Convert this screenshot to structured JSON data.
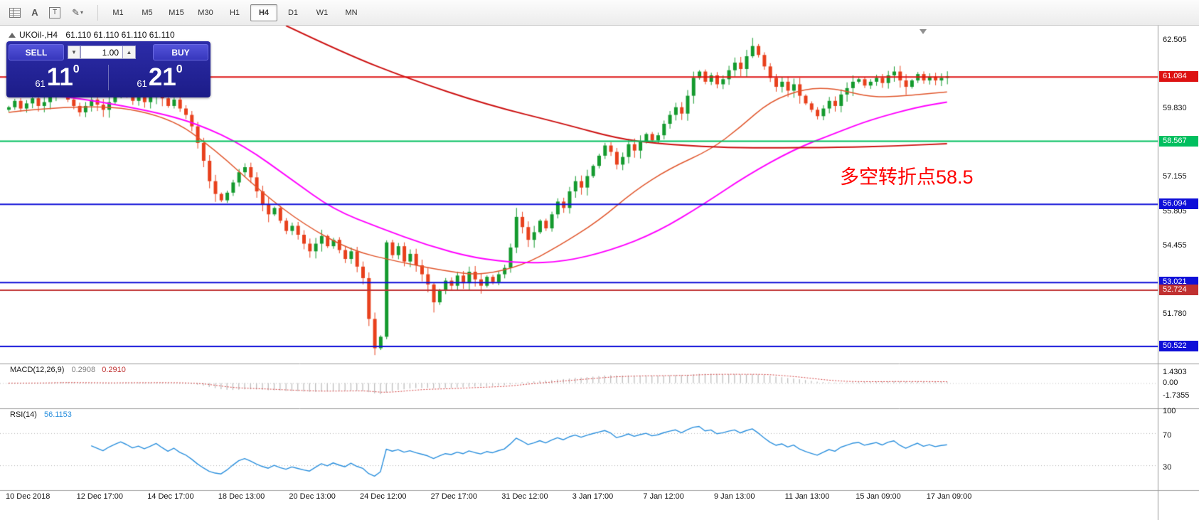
{
  "toolbar": {
    "icons": {
      "text_tool": "A",
      "textbox_tool": "T",
      "draw_tool": "✎",
      "dropdown_glyph": "▾"
    },
    "timeframes": [
      "M1",
      "M5",
      "M15",
      "M30",
      "H1",
      "H4",
      "D1",
      "W1",
      "MN"
    ],
    "active_timeframe": "H4"
  },
  "symbol_info": {
    "symbol": "UKOil-,H4",
    "ohlc": "61.110 61.110 61.110 61.110"
  },
  "trade_panel": {
    "sell_label": "SELL",
    "buy_label": "BUY",
    "volume": "1.00",
    "spin_down_glyph": "▼",
    "spin_up_glyph": "▲",
    "bid": {
      "prefix": "61",
      "big": "11",
      "sup": "0"
    },
    "ask": {
      "prefix": "61",
      "big": "21",
      "sup": "0"
    }
  },
  "annotation": {
    "text": "多空转折点58.5",
    "color": "#ff0000"
  },
  "macd_panel": {
    "name": "MACD(12,26,9)",
    "value_main": "0.2908",
    "value_signal": "0.2910",
    "axis": [
      {
        "v": 1.4303,
        "text": "1.4303"
      },
      {
        "v": 0,
        "text": "0.00"
      },
      {
        "v": -1.7355,
        "text": "-1.7355"
      }
    ],
    "histogram_color": "#bdbdbd",
    "signal_color": "#d23f3f"
  },
  "rsi_panel": {
    "name": "RSI(14)",
    "value": "56.1153",
    "axis": [
      {
        "v": 100,
        "text": "100"
      },
      {
        "v": 70,
        "text": "70"
      },
      {
        "v": 30,
        "text": "30"
      }
    ],
    "line_color": "#2a8fdd"
  },
  "chart_data": {
    "type": "candlestick",
    "symbol": "UKOil-",
    "timeframe": "H4",
    "up_color": "#149a2e",
    "down_color": "#e8401c",
    "visible_price_range": [
      50.0,
      63.2
    ],
    "closes": [
      59.9,
      60.15,
      59.85,
      60.05,
      60.25,
      59.95,
      60.1,
      60.45,
      60.7,
      60.5,
      60.2,
      59.95,
      59.7,
      59.95,
      60.2,
      60.0,
      59.8,
      60.1,
      60.35,
      60.6,
      60.4,
      60.15,
      60.3,
      60.1,
      60.3,
      60.55,
      60.25,
      59.95,
      60.2,
      59.85,
      59.6,
      59.15,
      58.5,
      57.8,
      57.0,
      56.5,
      56.25,
      56.55,
      56.95,
      57.35,
      57.55,
      57.15,
      56.6,
      56.1,
      55.7,
      55.95,
      55.45,
      55.05,
      55.25,
      54.9,
      54.55,
      54.25,
      54.55,
      54.85,
      54.45,
      54.7,
      54.3,
      53.95,
      54.25,
      53.65,
      53.2,
      51.6,
      50.45,
      50.9,
      54.6,
      54.1,
      54.45,
      53.85,
      54.15,
      53.7,
      53.35,
      52.95,
      52.25,
      52.7,
      53.1,
      52.9,
      53.3,
      53.0,
      53.45,
      53.15,
      52.9,
      53.25,
      53.05,
      53.35,
      53.6,
      54.4,
      55.6,
      55.2,
      54.7,
      55.0,
      55.45,
      55.15,
      55.7,
      56.2,
      55.95,
      56.6,
      57.0,
      56.75,
      57.2,
      57.6,
      58.0,
      58.4,
      58.15,
      57.65,
      57.95,
      58.45,
      58.2,
      58.55,
      58.85,
      58.6,
      58.8,
      59.25,
      59.6,
      59.9,
      59.65,
      60.35,
      61.05,
      61.3,
      60.9,
      61.15,
      60.8,
      61.0,
      61.35,
      61.65,
      61.4,
      61.9,
      62.3,
      61.95,
      61.5,
      61.05,
      60.7,
      60.9,
      60.55,
      60.8,
      60.35,
      60.05,
      59.8,
      59.55,
      59.85,
      60.15,
      59.95,
      60.4,
      60.65,
      60.9,
      61.0,
      60.75,
      60.9,
      61.05,
      60.85,
      61.15,
      61.3,
      60.95,
      60.7,
      60.95,
      61.2,
      60.95,
      61.1,
      60.95,
      61.05,
      61.11
    ],
    "spike_highs": {
      "86": 55.95,
      "126": 62.62
    },
    "spike_lows": {
      "62": 50.18,
      "72": 51.85
    },
    "x_labels": [
      {
        "bar": 0,
        "text": "10 Dec 2018"
      },
      {
        "bar": 12,
        "text": "12 Dec 17:00"
      },
      {
        "bar": 24,
        "text": "14 Dec 17:00"
      },
      {
        "bar": 36,
        "text": "18 Dec 13:00"
      },
      {
        "bar": 48,
        "text": "20 Dec 13:00"
      },
      {
        "bar": 60,
        "text": "24 Dec 12:00"
      },
      {
        "bar": 72,
        "text": "27 Dec 17:00"
      },
      {
        "bar": 84,
        "text": "31 Dec 12:00"
      },
      {
        "bar": 96,
        "text": "3 Jan 17:00"
      },
      {
        "bar": 108,
        "text": "7 Jan 12:00"
      },
      {
        "bar": 120,
        "text": "9 Jan 13:00"
      },
      {
        "bar": 132,
        "text": "11 Jan 13:00"
      },
      {
        "bar": 144,
        "text": "15 Jan 09:00"
      },
      {
        "bar": 156,
        "text": "17 Jan 09:00"
      }
    ],
    "y_labels": [
      {
        "price": 62.505,
        "text": "62.505"
      },
      {
        "price": 59.83,
        "text": "59.830"
      },
      {
        "price": 57.155,
        "text": "57.155"
      },
      {
        "price": 55.805,
        "text": "55.805"
      },
      {
        "price": 54.455,
        "text": "54.455"
      },
      {
        "price": 51.78,
        "text": "51.780"
      }
    ],
    "hlines": [
      {
        "price": 61.084,
        "text": "61.084",
        "color": "#dd1111"
      },
      {
        "price": 58.567,
        "text": "58.567",
        "color": "#00bf5f"
      },
      {
        "price": 56.094,
        "text": "56.094",
        "color": "#0f0fd8"
      },
      {
        "price": 53.021,
        "text": "53.021",
        "color": "#0f0fd8"
      },
      {
        "price": 52.724,
        "text": "52.724",
        "color": "#c03030"
      },
      {
        "price": 50.522,
        "text": "50.522",
        "color": "#0f0fd8"
      }
    ],
    "moving_averages": [
      {
        "name": "slow-ma",
        "color": "#cc1111",
        "width": 2,
        "points": [
          [
            47,
            63.1
          ],
          [
            57,
            62.0
          ],
          [
            68,
            61.0
          ],
          [
            81,
            60.0
          ],
          [
            94,
            59.25
          ],
          [
            103,
            58.68
          ],
          [
            110,
            58.47
          ],
          [
            120,
            58.33
          ],
          [
            128,
            58.3
          ],
          [
            141,
            58.33
          ],
          [
            150,
            58.38
          ],
          [
            159,
            58.47
          ]
        ]
      },
      {
        "name": "mid-ma",
        "color": "#ff00ff",
        "width": 2,
        "points": [
          [
            0,
            60.58
          ],
          [
            11,
            60.29
          ],
          [
            24,
            59.76
          ],
          [
            32,
            59.26
          ],
          [
            40,
            58.38
          ],
          [
            48,
            57.06
          ],
          [
            55,
            55.89
          ],
          [
            63,
            55.16
          ],
          [
            71,
            54.48
          ],
          [
            79,
            53.98
          ],
          [
            87,
            53.78
          ],
          [
            94,
            53.84
          ],
          [
            102,
            54.28
          ],
          [
            110,
            55.01
          ],
          [
            118,
            56.13
          ],
          [
            125,
            57.21
          ],
          [
            133,
            58.24
          ],
          [
            140,
            58.88
          ],
          [
            146,
            59.41
          ],
          [
            154,
            59.91
          ],
          [
            159,
            60.1
          ]
        ]
      },
      {
        "name": "fast-ma",
        "color": "#e0552b",
        "width": 1.5,
        "points": [
          [
            0,
            59.7
          ],
          [
            14,
            60.06
          ],
          [
            27,
            59.56
          ],
          [
            35,
            58.24
          ],
          [
            43,
            56.54
          ],
          [
            50,
            55.31
          ],
          [
            58,
            54.28
          ],
          [
            66,
            53.84
          ],
          [
            74,
            53.48
          ],
          [
            80,
            53.31
          ],
          [
            87,
            53.69
          ],
          [
            93,
            54.42
          ],
          [
            100,
            55.45
          ],
          [
            106,
            56.62
          ],
          [
            112,
            57.5
          ],
          [
            119,
            58.24
          ],
          [
            124,
            59.12
          ],
          [
            129,
            60.14
          ],
          [
            135,
            60.64
          ],
          [
            140,
            60.64
          ],
          [
            145,
            60.35
          ],
          [
            149,
            60.29
          ],
          [
            159,
            60.5
          ]
        ]
      }
    ],
    "indicators": [
      {
        "name": "MACD",
        "params": [
          12,
          26,
          9
        ]
      },
      {
        "name": "RSI",
        "params": [
          14
        ]
      }
    ]
  }
}
